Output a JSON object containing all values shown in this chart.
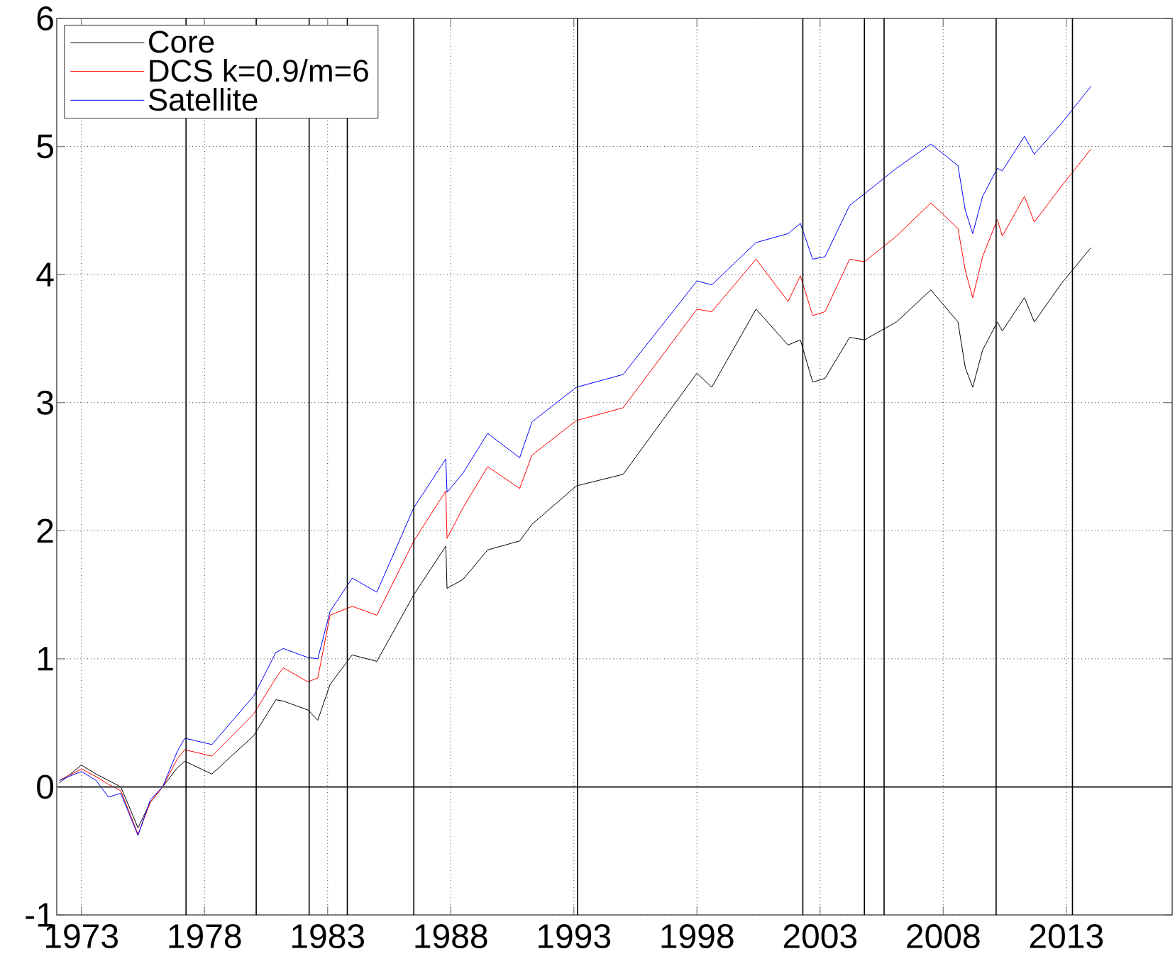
{
  "chart_data": {
    "type": "line",
    "x": [
      1972.1,
      1973.0,
      1973.6,
      1974.1,
      1974.6,
      1975.3,
      1975.8,
      1976.3,
      1976.9,
      1977.2,
      1978.3,
      1980.0,
      1980.9,
      1981.2,
      1982.2,
      1982.6,
      1983.1,
      1984.0,
      1985.0,
      1986.5,
      1987.8,
      1987.85,
      1988.5,
      1989.5,
      1990.8,
      1991.3,
      1993.1,
      1995.0,
      1998.0,
      1998.6,
      2000.4,
      2001.7,
      2002.2,
      2002.7,
      2003.2,
      2004.2,
      2004.8,
      2006.1,
      2007.5,
      2008.6,
      2008.9,
      2009.2,
      2009.6,
      2010.2,
      2010.4,
      2011.3,
      2011.7,
      2012.8,
      2014.0
    ],
    "series": [
      {
        "name": "Core",
        "color": "#000000",
        "values": [
          0.03,
          0.17,
          0.1,
          0.05,
          0.0,
          -0.32,
          -0.12,
          0.0,
          0.15,
          0.2,
          0.1,
          0.4,
          0.68,
          0.67,
          0.6,
          0.52,
          0.8,
          1.03,
          0.98,
          1.5,
          1.88,
          1.55,
          1.62,
          1.85,
          1.92,
          2.05,
          2.35,
          2.44,
          3.23,
          3.12,
          3.73,
          3.45,
          3.49,
          3.16,
          3.19,
          3.51,
          3.49,
          3.63,
          3.88,
          3.63,
          3.27,
          3.12,
          3.41,
          3.63,
          3.56,
          3.82,
          3.63,
          3.93,
          4.21
        ]
      },
      {
        "name": "DCS k=0.9/m=6",
        "color": "#ff0000",
        "values": [
          0.05,
          0.14,
          0.08,
          0.02,
          -0.03,
          -0.37,
          -0.12,
          0.0,
          0.22,
          0.29,
          0.24,
          0.57,
          0.85,
          0.93,
          0.82,
          0.85,
          1.34,
          1.41,
          1.34,
          1.92,
          2.31,
          1.94,
          2.18,
          2.5,
          2.33,
          2.59,
          2.86,
          2.96,
          3.73,
          3.71,
          4.12,
          3.79,
          3.99,
          3.68,
          3.71,
          4.12,
          4.1,
          4.3,
          4.56,
          4.36,
          4.03,
          3.82,
          4.14,
          4.43,
          4.3,
          4.61,
          4.41,
          4.69,
          4.98
        ]
      },
      {
        "name": "Satellite",
        "color": "#0000ff",
        "values": [
          0.05,
          0.12,
          0.05,
          -0.08,
          -0.05,
          -0.38,
          -0.1,
          0.0,
          0.28,
          0.38,
          0.33,
          0.71,
          1.05,
          1.08,
          1.01,
          1.0,
          1.37,
          1.63,
          1.52,
          2.18,
          2.56,
          2.3,
          2.45,
          2.76,
          2.57,
          2.85,
          3.12,
          3.22,
          3.95,
          3.92,
          4.25,
          4.32,
          4.4,
          4.12,
          4.14,
          4.54,
          4.63,
          4.83,
          5.02,
          4.85,
          4.5,
          4.32,
          4.61,
          4.83,
          4.81,
          5.08,
          4.94,
          5.18,
          5.47
        ]
      }
    ],
    "xlim": [
      1972.0,
      2017.3
    ],
    "ylim": [
      -1,
      6
    ],
    "xticks": [
      1973,
      1978,
      1983,
      1988,
      1993,
      1998,
      2003,
      2008,
      2013
    ],
    "yticks": [
      -1,
      0,
      1,
      2,
      3,
      4,
      5,
      6
    ],
    "ref_lines": [
      {
        "axis": "y",
        "value": 0,
        "color": "#555555"
      },
      {
        "axis": "x",
        "value": 1977.25,
        "color": "#000000"
      },
      {
        "axis": "x",
        "value": 1980.1,
        "color": "#000000"
      },
      {
        "axis": "x",
        "value": 1982.25,
        "color": "#000000"
      },
      {
        "axis": "x",
        "value": 1983.8,
        "color": "#000000"
      },
      {
        "axis": "x",
        "value": 1986.5,
        "color": "#000000"
      },
      {
        "axis": "x",
        "value": 1993.15,
        "color": "#000000"
      },
      {
        "axis": "x",
        "value": 2002.3,
        "color": "#000000"
      },
      {
        "axis": "x",
        "value": 2004.8,
        "color": "#000000"
      },
      {
        "axis": "x",
        "value": 2005.6,
        "color": "#000000"
      },
      {
        "axis": "x",
        "value": 2010.15,
        "color": "#000000"
      },
      {
        "axis": "x",
        "value": 2013.25,
        "color": "#000000"
      }
    ],
    "grid": true,
    "legend": "top left",
    "marker": "none",
    "line_style": "solid"
  }
}
